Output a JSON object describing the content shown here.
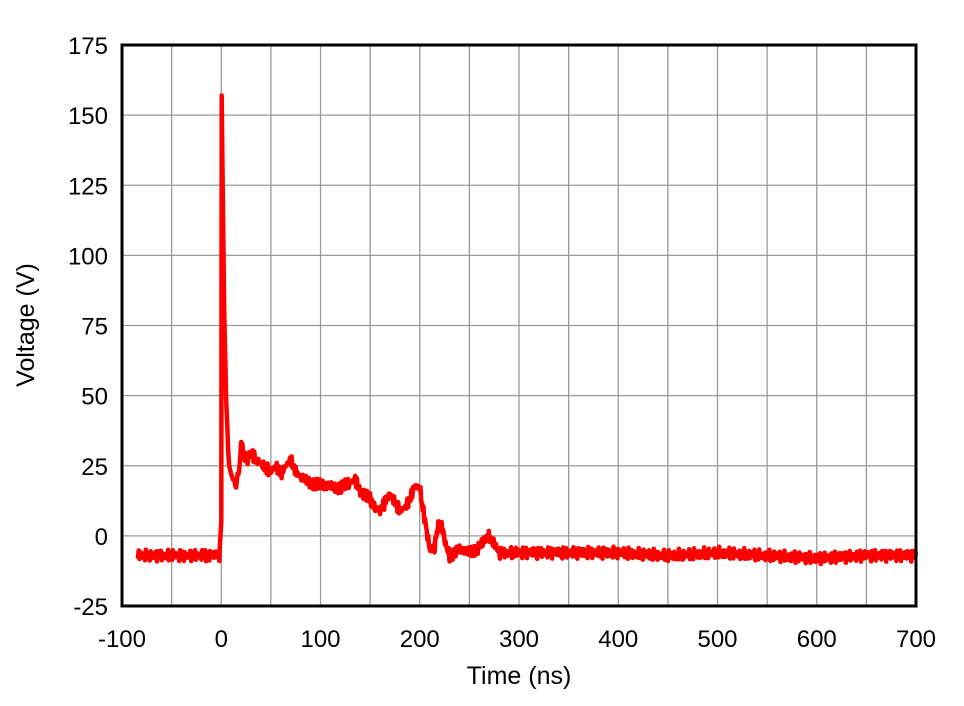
{
  "chart_data": {
    "type": "line",
    "title": "",
    "xlabel": "Time (ns)",
    "ylabel": "Voltage (V)",
    "xlim": [
      -100,
      700
    ],
    "ylim": [
      -25,
      175
    ],
    "x_ticks": [
      -100,
      0,
      100,
      200,
      300,
      400,
      500,
      600,
      700
    ],
    "y_ticks": [
      -25,
      0,
      25,
      50,
      75,
      100,
      125,
      150,
      175
    ],
    "x_tick_labels": [
      "-100",
      "0",
      "100",
      "200",
      "300",
      "400",
      "500",
      "600",
      "700"
    ],
    "y_tick_labels": [
      "-25",
      "0",
      "25",
      "50",
      "75",
      "100",
      "125",
      "150",
      "175"
    ],
    "grid": true,
    "legend": "none",
    "series": [
      {
        "color": "#ff0000",
        "x": [
          -84,
          -60,
          -40,
          -20,
          -2,
          0,
          0.5,
          1,
          2,
          3,
          4,
          5,
          6,
          7,
          8,
          10,
          12,
          15,
          18,
          20,
          22,
          25,
          28,
          30,
          35,
          40,
          45,
          50,
          55,
          60,
          65,
          70,
          75,
          80,
          90,
          100,
          110,
          120,
          130,
          135,
          140,
          150,
          155,
          160,
          165,
          170,
          175,
          180,
          185,
          190,
          195,
          200,
          203,
          207,
          210,
          215,
          218,
          222,
          226,
          230,
          240,
          250,
          260,
          268,
          272,
          280,
          300,
          350,
          400,
          450,
          500,
          550,
          600,
          650,
          700
        ],
        "y": [
          -7,
          -7,
          -7,
          -7,
          -7,
          5,
          157,
          140,
          110,
          80,
          65,
          48,
          40,
          30,
          25,
          22,
          20,
          18,
          24,
          32,
          30,
          27,
          28,
          30,
          27,
          26,
          24,
          23,
          25,
          22,
          25,
          27,
          23,
          21,
          19,
          18,
          18,
          17,
          19,
          20,
          16,
          13,
          10,
          9,
          12,
          15,
          12,
          9,
          10,
          13,
          18,
          17,
          10,
          2,
          -5,
          -4,
          3,
          4,
          -3,
          -7,
          -5,
          -6,
          -4,
          0,
          -1,
          -6,
          -6,
          -6,
          -6,
          -7,
          -6,
          -7,
          -8,
          -7,
          -7
        ]
      }
    ]
  }
}
